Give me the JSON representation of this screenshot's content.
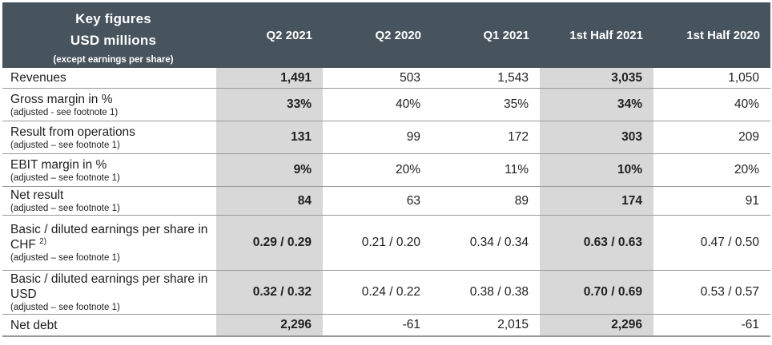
{
  "header": {
    "title_line1": "Key figures",
    "title_line2": "USD millions",
    "subtitle": "(except earnings per share)",
    "columns": [
      "Q2 2021",
      "Q2 2020",
      "Q1 2021",
      "1st Half 2021",
      "1st Half 2020"
    ]
  },
  "colors": {
    "header_bg": "#47535d",
    "highlight_column_bg": "#d8d8d8",
    "row_line": "#999999",
    "text": "#1f1f1f",
    "header_text": "#ffffff"
  },
  "rows": [
    {
      "label": "Revenues",
      "values": [
        "1,491",
        "503",
        "1,543",
        "3,035",
        "1,050"
      ]
    },
    {
      "label": "Gross margin in %",
      "note": "(adjusted - see footnote 1)",
      "values": [
        "33%",
        "40%",
        "35%",
        "34%",
        "40%"
      ]
    },
    {
      "label": "Result from operations",
      "note": "(adjusted – see footnote 1)",
      "values": [
        "131",
        "99",
        "172",
        "303",
        "209"
      ]
    },
    {
      "label": "EBIT margin in %",
      "note": "(adjusted – see footnote 1)",
      "values": [
        "9%",
        "20%",
        "11%",
        "10%",
        "20%"
      ]
    },
    {
      "label": "Net result",
      "note": "(adjusted – see footnote 1)",
      "values": [
        "84",
        "63",
        "89",
        "174",
        "91"
      ]
    },
    {
      "label": "Basic / diluted earnings per share in CHF",
      "sup": "2)",
      "note": "(adjusted – see footnote 1)",
      "values": [
        "0.29 / 0.29",
        "0.21 / 0.20",
        "0.34 / 0.34",
        "0.63 / 0.63",
        "0.47 / 0.50"
      ]
    },
    {
      "label": "Basic / diluted earnings per share in USD",
      "note": "(adjusted – see footnote 1)",
      "values": [
        "0.32 / 0.32",
        "0.24 / 0.22",
        "0.38 / 0.38",
        "0.70 / 0.69",
        "0.53 / 0.57"
      ]
    },
    {
      "label": "Net debt",
      "values": [
        "2,296",
        "-61",
        "2,015",
        "2,296",
        "-61"
      ]
    }
  ]
}
